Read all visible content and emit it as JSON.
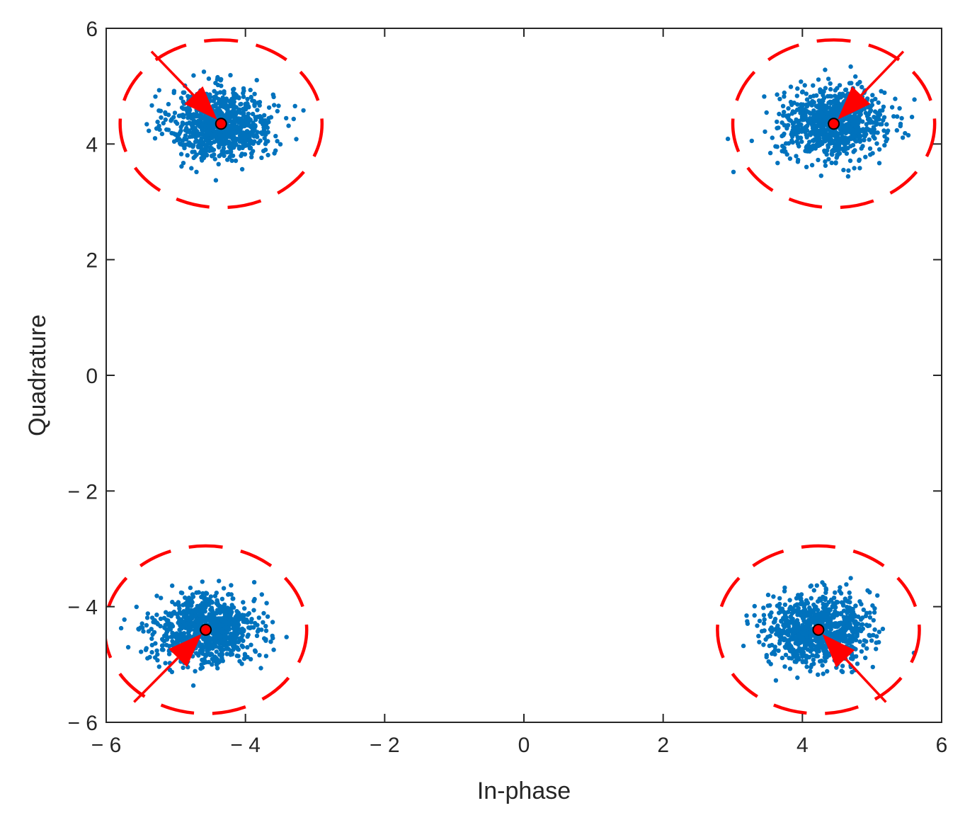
{
  "chart_data": {
    "type": "scatter",
    "title": "",
    "xlabel": "In-phase",
    "ylabel": "Quadrature",
    "xlim": [
      -6,
      6
    ],
    "ylim": [
      -6,
      6
    ],
    "xticks": [
      -6,
      -4,
      -2,
      0,
      2,
      4,
      6
    ],
    "yticks": [
      -6,
      -4,
      -2,
      0,
      2,
      4,
      6
    ],
    "xtick_labels": [
      "− 6",
      "− 4",
      "− 2",
      "0",
      "2",
      "4",
      "6"
    ],
    "ytick_labels": [
      "− 6",
      "− 4",
      "− 2",
      "0",
      "2",
      "4",
      "6"
    ],
    "grid": false,
    "legend": "none",
    "colors": {
      "samples": "#0072BD",
      "annotation": "#FF0000",
      "axis": "#262626"
    },
    "clusters": [
      {
        "center": [
          -4.35,
          4.35
        ],
        "spread": 0.35,
        "n": 900
      },
      {
        "center": [
          4.45,
          4.35
        ],
        "spread": 0.35,
        "n": 900
      },
      {
        "center": [
          -4.57,
          -4.4
        ],
        "spread": 0.35,
        "n": 900
      },
      {
        "center": [
          4.23,
          -4.4
        ],
        "spread": 0.35,
        "n": 900
      }
    ],
    "annotations": {
      "circles": [
        {
          "center": [
            -4.35,
            4.35
          ],
          "radius": 1.45
        },
        {
          "center": [
            4.45,
            4.35
          ],
          "radius": 1.45
        },
        {
          "center": [
            -4.57,
            -4.4
          ],
          "radius": 1.45
        },
        {
          "center": [
            4.23,
            -4.4
          ],
          "radius": 1.45
        }
      ],
      "arrows": [
        {
          "from": [
            -5.35,
            5.6
          ],
          "to": [
            -4.35,
            4.35
          ]
        },
        {
          "from": [
            5.45,
            5.6
          ],
          "to": [
            4.45,
            4.35
          ]
        },
        {
          "from": [
            -5.6,
            -5.65
          ],
          "to": [
            -4.57,
            -4.4
          ]
        },
        {
          "from": [
            5.2,
            -5.65
          ],
          "to": [
            4.23,
            -4.4
          ]
        }
      ],
      "markers": [
        [
          -4.35,
          4.35
        ],
        [
          4.45,
          4.35
        ],
        [
          -4.57,
          -4.4
        ],
        [
          4.23,
          -4.4
        ]
      ]
    }
  }
}
